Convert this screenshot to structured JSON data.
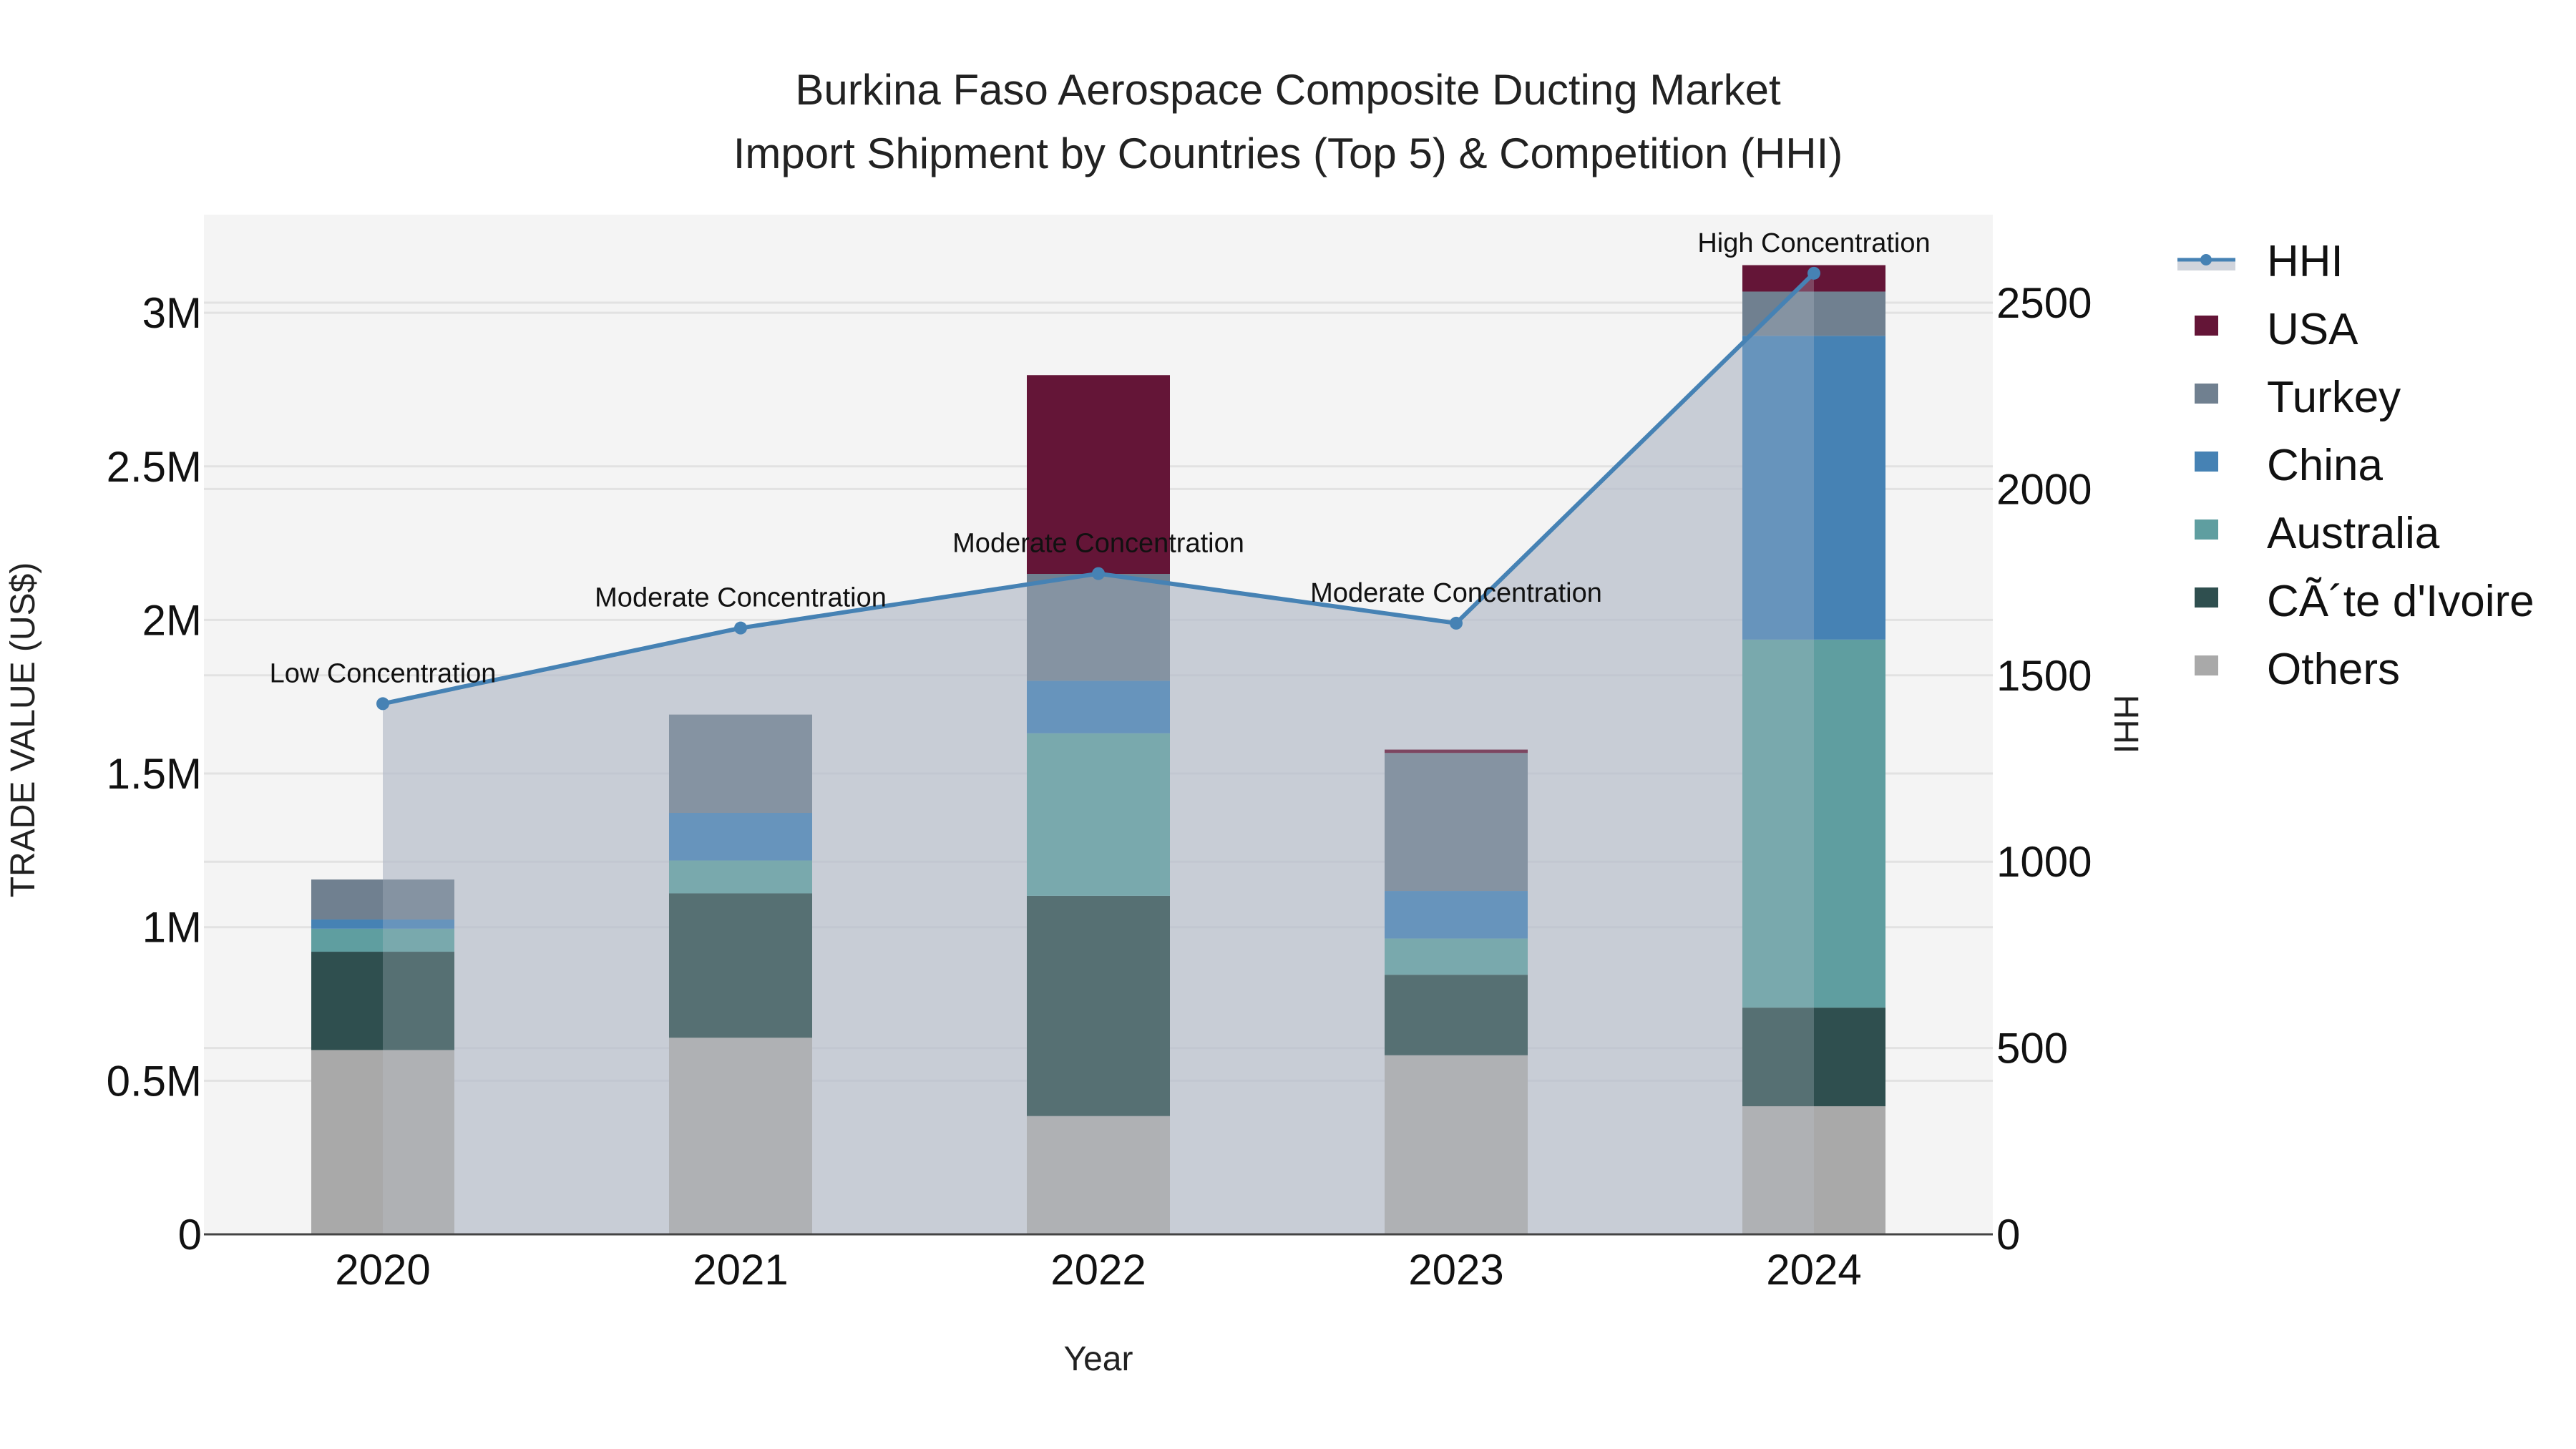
{
  "title": {
    "line1": "Burkina Faso Aerospace Composite Ducting Market",
    "line2": "Import Shipment by Countries (Top 5) & Competition (HHI)"
  },
  "axes": {
    "x_title": "Year",
    "y_left_title": "TRADE VALUE (US$)",
    "y_right_title": "HHI",
    "y_left_ticks": [
      "0",
      "0.5M",
      "1M",
      "1.5M",
      "2M",
      "2.5M",
      "3M"
    ],
    "y_right_ticks": [
      "0",
      "500",
      "1000",
      "1500",
      "2000",
      "2500"
    ]
  },
  "legend": [
    {
      "name": "HHI",
      "color": "#4682b4",
      "type": "line"
    },
    {
      "name": "USA",
      "color": "#641537",
      "type": "bar"
    },
    {
      "name": "Turkey",
      "color": "#708090",
      "type": "bar"
    },
    {
      "name": "China",
      "color": "#4682b4",
      "type": "bar"
    },
    {
      "name": "Australia",
      "color": "#5f9ea0",
      "type": "bar"
    },
    {
      "name": "CÃ´te d'Ivoire",
      "color": "#2f4f4f",
      "type": "bar"
    },
    {
      "name": "Others",
      "color": "#a9a9a9",
      "type": "bar"
    }
  ],
  "annotations": [
    "Low Concentration",
    "Moderate Concentration",
    "Moderate Concentration",
    "Moderate Concentration",
    "High Concentration"
  ],
  "chart_data": {
    "type": "bar",
    "subtype": "stacked bar with line overlay (secondary axis)",
    "title": "Burkina Faso Aerospace Composite Ducting Market — Import Shipment by Countries (Top 5) & Competition (HHI)",
    "xlabel": "Year",
    "ylabel": "TRADE VALUE (US$)",
    "y2label": "HHI",
    "categories": [
      "2020",
      "2021",
      "2022",
      "2023",
      "2024"
    ],
    "ylim": [
      0,
      3300000
    ],
    "y2lim": [
      0,
      2720
    ],
    "grid": true,
    "legend_position": "right",
    "series": [
      {
        "name": "Others",
        "color": "#a9a9a9",
        "values": [
          600000,
          640000,
          385000,
          583000,
          417000
        ]
      },
      {
        "name": "CÃ´te d'Ivoire",
        "color": "#2f4f4f",
        "values": [
          320000,
          470000,
          717000,
          262000,
          321000
        ]
      },
      {
        "name": "Australia",
        "color": "#5f9ea0",
        "values": [
          75000,
          107000,
          529000,
          118000,
          1198000
        ]
      },
      {
        "name": "China",
        "color": "#4682b4",
        "values": [
          30000,
          155000,
          171000,
          155000,
          989000
        ]
      },
      {
        "name": "Turkey",
        "color": "#708090",
        "values": [
          130000,
          320000,
          348000,
          449000,
          144000
        ]
      },
      {
        "name": "USA",
        "color": "#641537",
        "values": [
          0,
          0,
          647000,
          11000,
          86000
        ]
      },
      {
        "name": "HHI",
        "color": "#4682b4",
        "axis": "y2",
        "type": "line",
        "values": [
          1424,
          1627,
          1773,
          1640,
          2579
        ]
      }
    ],
    "annotations": [
      {
        "x": "2020",
        "text": "Low Concentration"
      },
      {
        "x": "2021",
        "text": "Moderate Concentration"
      },
      {
        "x": "2022",
        "text": "Moderate Concentration"
      },
      {
        "x": "2023",
        "text": "Moderate Concentration"
      },
      {
        "x": "2024",
        "text": "High Concentration"
      }
    ]
  }
}
